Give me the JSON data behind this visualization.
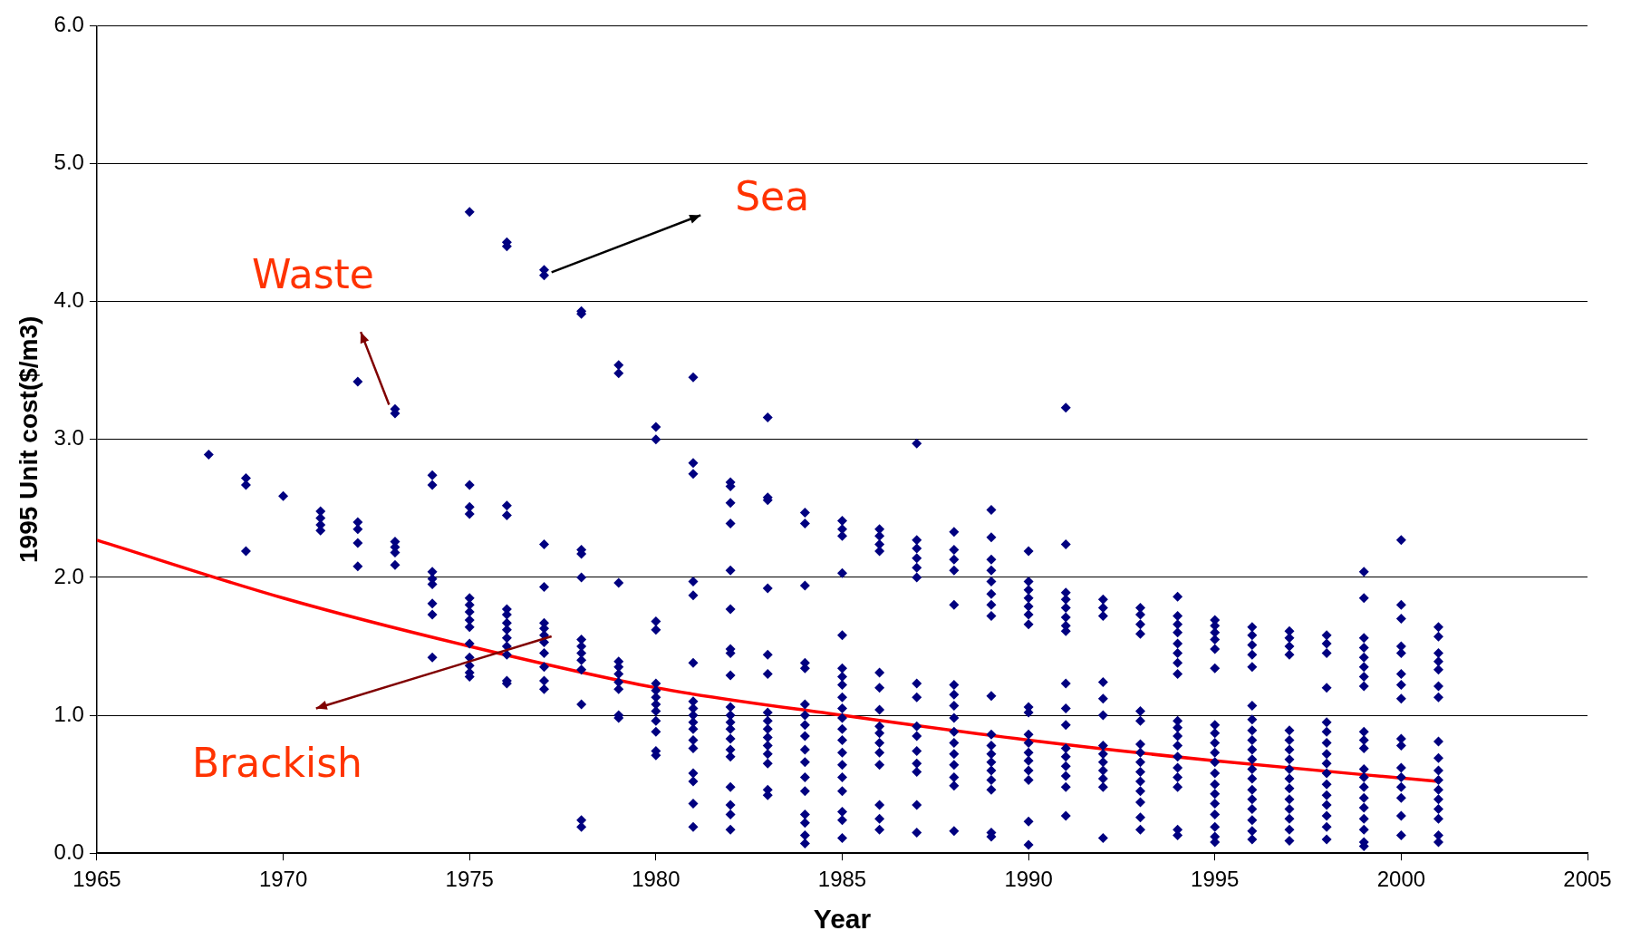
{
  "chart_data": {
    "type": "scatter",
    "xlabel": "Year",
    "ylabel": "1995 Unit cost($/m3)",
    "xlim": [
      1965,
      2005
    ],
    "xticks": [
      1965,
      1970,
      1975,
      1980,
      1985,
      1990,
      1995,
      2000,
      2005
    ],
    "ylim": [
      0,
      6
    ],
    "yticks": [
      {
        "value": 0,
        "label": "0.0"
      },
      {
        "value": 1,
        "label": "1.0"
      },
      {
        "value": 2,
        "label": "2.0"
      },
      {
        "value": 3,
        "label": "3.0"
      },
      {
        "value": 4,
        "label": "4.0"
      },
      {
        "value": 5,
        "label": "5.0"
      },
      {
        "value": 6,
        "label": "6.0"
      }
    ],
    "grid": "y",
    "legend": false,
    "marker": "diamond",
    "series": [
      {
        "type": "scatter",
        "color": "#000080",
        "x": [
          1968,
          1969,
          1969,
          1969,
          1970,
          1971,
          1971,
          1971,
          1971,
          1972,
          1972,
          1972,
          1972,
          1972,
          1973,
          1973,
          1973,
          1973,
          1973,
          1973,
          1974,
          1974,
          1974,
          1974,
          1974,
          1974,
          1974,
          1974,
          1975,
          1975,
          1975,
          1975,
          1975,
          1975,
          1975,
          1975,
          1975,
          1975,
          1975,
          1975,
          1975,
          1975,
          1976,
          1976,
          1976,
          1976,
          1976,
          1976,
          1976,
          1976,
          1976,
          1976,
          1976,
          1976,
          1976,
          1977,
          1977,
          1977,
          1977,
          1977,
          1977,
          1977,
          1977,
          1977,
          1977,
          1977,
          1977,
          1978,
          1978,
          1978,
          1978,
          1978,
          1978,
          1978,
          1978,
          1978,
          1978,
          1978,
          1978,
          1978,
          1979,
          1979,
          1979,
          1979,
          1979,
          1979,
          1979,
          1979,
          1979,
          1979,
          1980,
          1980,
          1980,
          1980,
          1980,
          1980,
          1980,
          1980,
          1980,
          1980,
          1980,
          1980,
          1980,
          1981,
          1981,
          1981,
          1981,
          1981,
          1981,
          1981,
          1981,
          1981,
          1981,
          1981,
          1981,
          1981,
          1981,
          1981,
          1981,
          1981,
          1982,
          1982,
          1982,
          1982,
          1982,
          1982,
          1982,
          1982,
          1982,
          1982,
          1982,
          1982,
          1982,
          1982,
          1982,
          1982,
          1982,
          1982,
          1982,
          1982,
          1983,
          1983,
          1983,
          1983,
          1983,
          1983,
          1983,
          1983,
          1983,
          1983,
          1983,
          1983,
          1983,
          1983,
          1983,
          1984,
          1984,
          1984,
          1984,
          1984,
          1984,
          1984,
          1984,
          1984,
          1984,
          1984,
          1984,
          1984,
          1984,
          1984,
          1984,
          1984,
          1985,
          1985,
          1985,
          1985,
          1985,
          1985,
          1985,
          1985,
          1985,
          1985,
          1985,
          1985,
          1985,
          1985,
          1985,
          1985,
          1985,
          1985,
          1985,
          1985,
          1986,
          1986,
          1986,
          1986,
          1986,
          1986,
          1986,
          1986,
          1986,
          1986,
          1986,
          1986,
          1986,
          1986,
          1986,
          1987,
          1987,
          1987,
          1987,
          1987,
          1987,
          1987,
          1987,
          1987,
          1987,
          1987,
          1987,
          1987,
          1987,
          1987,
          1988,
          1988,
          1988,
          1988,
          1988,
          1988,
          1988,
          1988,
          1988,
          1988,
          1988,
          1988,
          1988,
          1988,
          1988,
          1988,
          1989,
          1989,
          1989,
          1989,
          1989,
          1989,
          1989,
          1989,
          1989,
          1989,
          1989,
          1989,
          1989,
          1989,
          1989,
          1989,
          1989,
          1989,
          1990,
          1990,
          1990,
          1990,
          1990,
          1990,
          1990,
          1990,
          1990,
          1990,
          1990,
          1990,
          1990,
          1990,
          1990,
          1990,
          1990,
          1991,
          1991,
          1991,
          1991,
          1991,
          1991,
          1991,
          1991,
          1991,
          1991,
          1991,
          1991,
          1991,
          1991,
          1991,
          1991,
          1991,
          1992,
          1992,
          1992,
          1992,
          1992,
          1992,
          1992,
          1992,
          1992,
          1992,
          1992,
          1992,
          1992,
          1993,
          1993,
          1993,
          1993,
          1993,
          1993,
          1993,
          1993,
          1993,
          1993,
          1993,
          1993,
          1993,
          1993,
          1993,
          1994,
          1994,
          1994,
          1994,
          1994,
          1994,
          1994,
          1994,
          1994,
          1994,
          1994,
          1994,
          1994,
          1994,
          1994,
          1994,
          1994,
          1994,
          1995,
          1995,
          1995,
          1995,
          1995,
          1995,
          1995,
          1995,
          1995,
          1995,
          1995,
          1995,
          1995,
          1995,
          1995,
          1995,
          1995,
          1995,
          1995,
          1996,
          1996,
          1996,
          1996,
          1996,
          1996,
          1996,
          1996,
          1996,
          1996,
          1996,
          1996,
          1996,
          1996,
          1996,
          1996,
          1996,
          1996,
          1996,
          1997,
          1997,
          1997,
          1997,
          1997,
          1997,
          1997,
          1997,
          1997,
          1997,
          1997,
          1997,
          1997,
          1997,
          1997,
          1997,
          1998,
          1998,
          1998,
          1998,
          1998,
          1998,
          1998,
          1998,
          1998,
          1998,
          1998,
          1998,
          1998,
          1998,
          1998,
          1998,
          1999,
          1999,
          1999,
          1999,
          1999,
          1999,
          1999,
          1999,
          1999,
          1999,
          1999,
          1999,
          1999,
          1999,
          1999,
          1999,
          1999,
          1999,
          1999,
          1999,
          2000,
          2000,
          2000,
          2000,
          2000,
          2000,
          2000,
          2000,
          2000,
          2000,
          2000,
          2000,
          2000,
          2000,
          2000,
          2000,
          2001,
          2001,
          2001,
          2001,
          2001,
          2001,
          2001,
          2001,
          2001,
          2001,
          2001,
          2001,
          2001,
          2001,
          2001,
          2001,
          2001
        ],
        "values": [
          2.89,
          2.72,
          2.67,
          2.19,
          2.59,
          2.48,
          2.43,
          2.38,
          2.34,
          3.42,
          2.4,
          2.35,
          2.25,
          2.08,
          3.22,
          3.19,
          2.26,
          2.22,
          2.18,
          2.09,
          2.74,
          2.67,
          2.04,
          1.99,
          1.95,
          1.81,
          1.73,
          1.42,
          4.65,
          2.67,
          2.51,
          2.46,
          1.85,
          1.8,
          1.75,
          1.69,
          1.64,
          1.52,
          1.42,
          1.36,
          1.31,
          1.28,
          4.43,
          4.4,
          2.52,
          2.45,
          1.77,
          1.73,
          1.67,
          1.62,
          1.56,
          1.5,
          1.44,
          1.25,
          1.23,
          4.23,
          4.19,
          2.24,
          1.93,
          1.67,
          1.63,
          1.58,
          1.53,
          1.45,
          1.35,
          1.25,
          1.19,
          3.93,
          3.91,
          2.2,
          2.17,
          2.0,
          1.55,
          1.5,
          1.45,
          1.4,
          1.33,
          1.08,
          0.24,
          0.19,
          3.54,
          3.48,
          1.96,
          1.39,
          1.35,
          1.3,
          1.24,
          1.19,
          1.0,
          0.98,
          3.09,
          3.0,
          1.68,
          1.62,
          1.23,
          1.18,
          1.13,
          1.08,
          1.03,
          0.96,
          0.88,
          0.74,
          0.71,
          3.45,
          2.83,
          2.75,
          1.97,
          1.87,
          1.38,
          1.1,
          1.05,
          1.0,
          0.95,
          0.9,
          0.82,
          0.76,
          0.58,
          0.52,
          0.36,
          0.19,
          2.69,
          2.66,
          2.54,
          2.39,
          2.05,
          1.77,
          1.48,
          1.45,
          1.29,
          1.06,
          1.0,
          0.95,
          0.9,
          0.83,
          0.75,
          0.7,
          0.48,
          0.35,
          0.28,
          0.17,
          3.16,
          2.58,
          2.56,
          1.92,
          1.44,
          1.3,
          1.02,
          0.96,
          0.9,
          0.84,
          0.78,
          0.72,
          0.65,
          0.46,
          0.42,
          2.47,
          2.39,
          1.94,
          1.38,
          1.34,
          1.08,
          1.0,
          0.93,
          0.85,
          0.75,
          0.66,
          0.55,
          0.45,
          0.28,
          0.22,
          0.13,
          0.07,
          2.41,
          2.35,
          2.3,
          2.03,
          1.58,
          1.34,
          1.28,
          1.22,
          1.13,
          1.05,
          0.98,
          0.9,
          0.82,
          0.73,
          0.64,
          0.55,
          0.45,
          0.3,
          0.24,
          0.11,
          2.35,
          2.3,
          2.24,
          2.19,
          1.31,
          1.2,
          1.04,
          0.92,
          0.87,
          0.8,
          0.73,
          0.64,
          0.35,
          0.25,
          0.17,
          2.97,
          2.27,
          2.21,
          2.14,
          2.07,
          2.0,
          1.23,
          1.13,
          0.92,
          0.85,
          0.74,
          0.65,
          0.59,
          0.35,
          0.15,
          2.33,
          2.2,
          2.13,
          2.05,
          1.8,
          1.22,
          1.15,
          1.07,
          0.98,
          0.88,
          0.8,
          0.72,
          0.64,
          0.55,
          0.49,
          0.16,
          2.49,
          2.29,
          2.13,
          2.05,
          1.97,
          1.88,
          1.8,
          1.72,
          1.14,
          0.86,
          0.78,
          0.72,
          0.66,
          0.6,
          0.53,
          0.46,
          0.15,
          0.12,
          2.19,
          1.97,
          1.91,
          1.85,
          1.79,
          1.73,
          1.66,
          1.06,
          1.02,
          0.86,
          0.8,
          0.73,
          0.67,
          0.6,
          0.53,
          0.23,
          0.06,
          3.23,
          2.24,
          1.89,
          1.84,
          1.78,
          1.71,
          1.65,
          1.61,
          1.23,
          1.05,
          0.93,
          0.76,
          0.7,
          0.63,
          0.56,
          0.48,
          0.27,
          1.84,
          1.78,
          1.72,
          1.24,
          1.12,
          1.0,
          0.78,
          0.72,
          0.66,
          0.6,
          0.54,
          0.48,
          0.11,
          1.78,
          1.73,
          1.66,
          1.59,
          1.03,
          0.96,
          0.79,
          0.73,
          0.66,
          0.59,
          0.52,
          0.45,
          0.37,
          0.26,
          0.17,
          1.86,
          1.72,
          1.66,
          1.6,
          1.52,
          1.45,
          1.38,
          1.3,
          0.96,
          0.91,
          0.85,
          0.78,
          0.7,
          0.62,
          0.55,
          0.48,
          0.17,
          0.13,
          1.69,
          1.65,
          1.6,
          1.55,
          1.48,
          1.34,
          0.93,
          0.87,
          0.8,
          0.73,
          0.66,
          0.58,
          0.5,
          0.43,
          0.36,
          0.28,
          0.19,
          0.12,
          0.08,
          1.64,
          1.58,
          1.51,
          1.44,
          1.35,
          1.07,
          0.97,
          0.89,
          0.82,
          0.75,
          0.68,
          0.61,
          0.54,
          0.46,
          0.39,
          0.32,
          0.24,
          0.16,
          0.1,
          1.61,
          1.56,
          1.5,
          1.44,
          0.89,
          0.82,
          0.75,
          0.68,
          0.61,
          0.54,
          0.47,
          0.39,
          0.32,
          0.25,
          0.17,
          0.09,
          1.58,
          1.52,
          1.45,
          1.2,
          0.95,
          0.88,
          0.8,
          0.72,
          0.65,
          0.58,
          0.5,
          0.42,
          0.35,
          0.27,
          0.19,
          0.1,
          2.04,
          1.85,
          1.56,
          1.49,
          1.42,
          1.35,
          1.28,
          1.21,
          0.88,
          0.82,
          0.76,
          0.61,
          0.55,
          0.48,
          0.4,
          0.33,
          0.25,
          0.17,
          0.08,
          0.05,
          2.27,
          1.8,
          1.7,
          1.5,
          1.45,
          1.3,
          1.22,
          1.12,
          0.83,
          0.78,
          0.62,
          0.55,
          0.48,
          0.4,
          0.27,
          0.13,
          1.64,
          1.57,
          1.45,
          1.39,
          1.33,
          1.21,
          1.13,
          0.81,
          0.69,
          0.6,
          0.53,
          0.46,
          0.39,
          0.32,
          0.25,
          0.13,
          0.08
        ]
      },
      {
        "type": "line",
        "color": "#ff0000",
        "marker": "none",
        "line_style": "solid",
        "x": [
          1965,
          1970,
          1975,
          1980,
          1985,
          1990,
          1995,
          2001
        ],
        "values": [
          2.27,
          1.85,
          1.5,
          1.2,
          1.0,
          0.82,
          0.67,
          0.52
        ]
      }
    ],
    "annotations": [
      "Sea",
      "Waste",
      "Brackish"
    ]
  }
}
